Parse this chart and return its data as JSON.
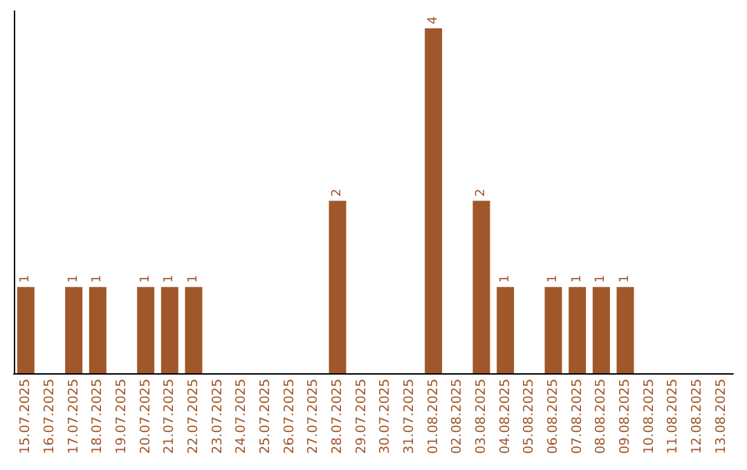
{
  "chart_data": {
    "type": "bar",
    "categories": [
      "15.07.2025",
      "16.07.2025",
      "17.07.2025",
      "18.07.2025",
      "19.07.2025",
      "20.07.2025",
      "21.07.2025",
      "22.07.2025",
      "23.07.2025",
      "24.07.2025",
      "25.07.2025",
      "26.07.2025",
      "27.07.2025",
      "28.07.2025",
      "29.07.2025",
      "30.07.2025",
      "31.07.2025",
      "01.08.2025",
      "02.08.2025",
      "03.08.2025",
      "04.08.2025",
      "05.08.2025",
      "06.08.2025",
      "07.08.2025",
      "08.08.2025",
      "09.08.2025",
      "10.08.2025",
      "11.08.2025",
      "12.08.2025",
      "13.08.2025"
    ],
    "values": [
      1,
      0,
      1,
      1,
      0,
      1,
      1,
      1,
      0,
      0,
      0,
      0,
      0,
      2,
      0,
      0,
      0,
      4,
      0,
      2,
      1,
      0,
      1,
      1,
      1,
      1,
      0,
      0,
      0,
      0
    ],
    "value_labels": [
      "1",
      null,
      "1",
      "1",
      null,
      "1",
      "1",
      "1",
      null,
      null,
      null,
      null,
      null,
      "2",
      null,
      null,
      null,
      "4",
      null,
      "2",
      "1",
      null,
      "1",
      "1",
      "1",
      "1",
      null,
      null,
      null,
      null
    ],
    "color": "#a0572a",
    "ylim": [
      0,
      4.2
    ],
    "tick_labels": "x",
    "grid": false
  }
}
